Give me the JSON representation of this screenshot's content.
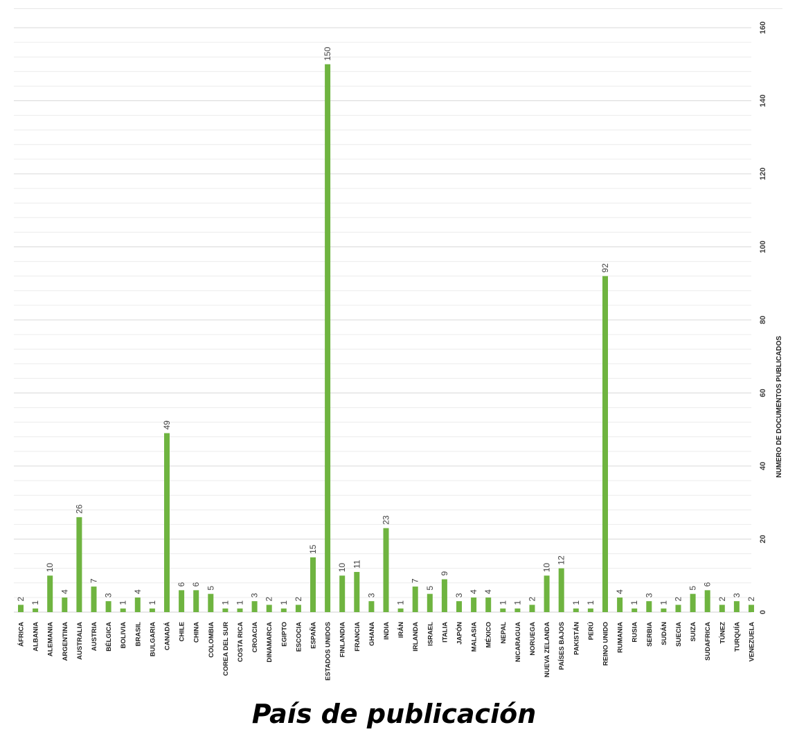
{
  "chart_data": {
    "type": "bar",
    "title": "",
    "xlabel": "País de publicación",
    "ylabel": "NUMERO DE DOCUMENTOS PUBLICADOS",
    "ylim": [
      0,
      160
    ],
    "yticks": [
      0,
      20,
      40,
      60,
      80,
      100,
      120,
      140,
      160
    ],
    "y_axis_position": "right",
    "grid": true,
    "bar_color": "#6fb440",
    "categories": [
      "ÁFRICA",
      "ALBANIA",
      "ALEMANIA",
      "ARGENTINA",
      "AUSTRALIA",
      "AUSTRIA",
      "BÉLGICA",
      "BOLIVIA",
      "BRASIL",
      "BULGARIA",
      "CANADÁ",
      "CHILE",
      "CHINA",
      "COLOMBIA",
      "COREA DEL SUR",
      "COSTA RICA",
      "CROACIA",
      "DINAMARCA",
      "EGIPTO",
      "ESCOCIA",
      "ESPAÑA",
      "ESTADOS UNIDOS",
      "FINLANDIA",
      "FRANCIA",
      "GHANA",
      "INDIA",
      "IRÁN",
      "IRLANDA",
      "ISRAEL",
      "ITALIA",
      "JAPÓN",
      "MALASIA",
      "MÉXICO",
      "NEPAL",
      "NICARAGUA",
      "NORUEGA",
      "NUEVA ZELANDA",
      "PAÍSES BAJOS",
      "PAKISTÁN",
      "PERÚ",
      "REINO UNIDO",
      "RUMANIA",
      "RUSIA",
      "SERBIA",
      "SUDÁN",
      "SUECIA",
      "SUIZA",
      "SUDAFRICA",
      "TÚNEZ",
      "TURQUÍA",
      "VENEZUELA"
    ],
    "values": [
      2,
      1,
      10,
      4,
      26,
      7,
      3,
      1,
      4,
      1,
      49,
      6,
      6,
      5,
      1,
      1,
      3,
      2,
      1,
      2,
      15,
      150,
      10,
      11,
      3,
      23,
      1,
      7,
      5,
      9,
      3,
      4,
      4,
      1,
      1,
      2,
      10,
      12,
      1,
      1,
      92,
      4,
      1,
      3,
      1,
      2,
      5,
      6,
      2,
      3,
      2
    ]
  }
}
